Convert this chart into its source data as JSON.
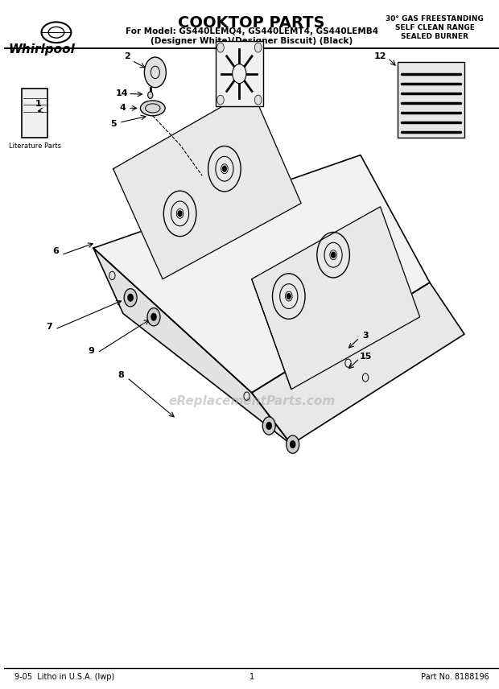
{
  "title": "COOKTOP PARTS",
  "subtitle_line1": "For Model: GS440LEMQ4, GS440LEMT4, GS440LEMB4",
  "subtitle_line2": "(Designer White)(Designer Biscuit) (Black)",
  "top_right_line1": "30° GAS FREESTANDING",
  "top_right_line2": "SELF CLEAN RANGE",
  "top_right_line3": "SEALED BURNER",
  "whirlpool_text": "Whirlpool",
  "literature_parts": "Literature Parts",
  "footer_left": "9-05  Litho in U.S.A. (lwp)",
  "footer_center": "1",
  "footer_right": "Part No. 8188196",
  "watermark": "eReplacementParts.com",
  "bg_color": "#ffffff",
  "line_color": "#000000"
}
